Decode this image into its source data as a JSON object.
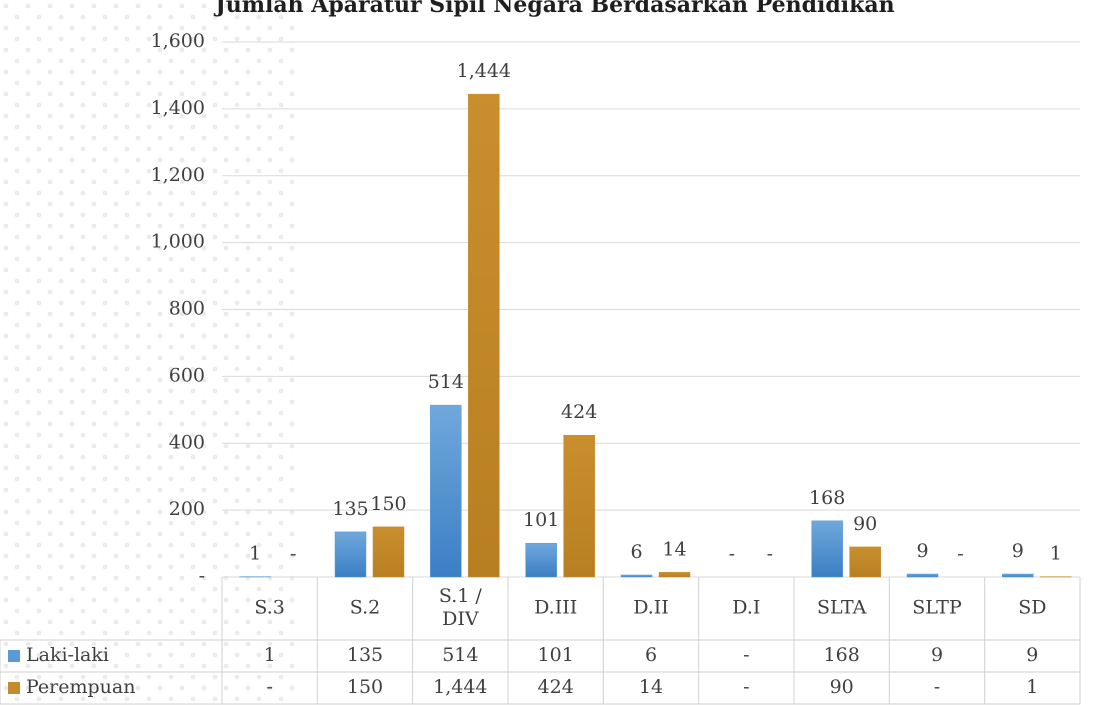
{
  "chart_data": {
    "type": "bar",
    "title": "Jumlah Aparatur Sipil Negara Berdasarkan Pendidikan",
    "categories": [
      "S.3",
      "S.2",
      "S.1 / DIV",
      "D.III",
      "D.II",
      "D.I",
      "SLTA",
      "SLTP",
      "SD"
    ],
    "series": [
      {
        "name": "Laki-laki",
        "color": "#5b9bd5",
        "values": [
          1,
          135,
          514,
          101,
          6,
          0,
          168,
          9,
          9
        ],
        "value_labels": [
          "1",
          "135",
          "514",
          "101",
          "6",
          "-",
          "168",
          "9",
          "9"
        ]
      },
      {
        "name": "Perempuan",
        "color": "#c48a2c",
        "values": [
          0,
          150,
          1444,
          424,
          14,
          0,
          90,
          0,
          1
        ],
        "value_labels": [
          "-",
          "150",
          "1,444",
          "424",
          "14",
          "-",
          "90",
          "-",
          "1"
        ]
      }
    ],
    "ylim": [
      0,
      1600
    ],
    "yticks": [
      {
        "value": 0,
        "label": "-"
      },
      200,
      400,
      600,
      800,
      {
        "value": 1000,
        "label": "1,000"
      },
      {
        "value": 1200,
        "label": "1,200"
      },
      {
        "value": 1400,
        "label": "1,400"
      },
      {
        "value": 1600,
        "label": "1,600"
      }
    ],
    "grid": true
  }
}
